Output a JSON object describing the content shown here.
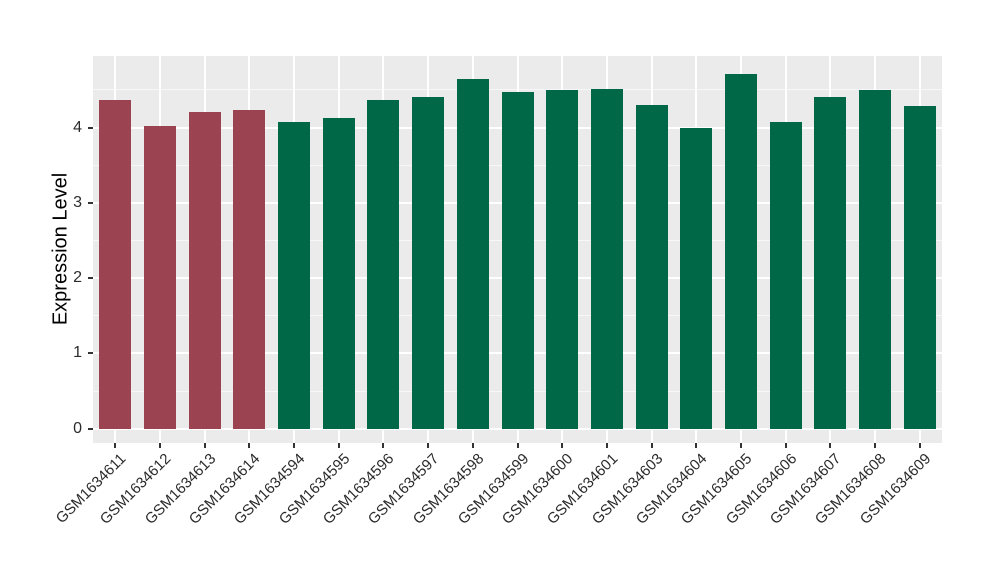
{
  "chart_data": {
    "type": "bar",
    "title": "",
    "xlabel": "",
    "ylabel": "Expression Level",
    "categories": [
      "GSM1634611",
      "GSM1634612",
      "GSM1634613",
      "GSM1634614",
      "GSM1634594",
      "GSM1634595",
      "GSM1634596",
      "GSM1634597",
      "GSM1634598",
      "GSM1634599",
      "GSM1634600",
      "GSM1634601",
      "GSM1634603",
      "GSM1634604",
      "GSM1634605",
      "GSM1634606",
      "GSM1634607",
      "GSM1634608",
      "GSM1634609"
    ],
    "values": [
      4.36,
      4.02,
      4.21,
      4.23,
      4.07,
      4.13,
      4.36,
      4.41,
      4.65,
      4.47,
      4.5,
      4.51,
      4.3,
      4.0,
      4.71,
      4.07,
      4.41,
      4.5,
      4.29
    ],
    "colors": [
      "#9B4351",
      "#9B4351",
      "#9B4351",
      "#9B4351",
      "#006747",
      "#006747",
      "#006747",
      "#006747",
      "#006747",
      "#006747",
      "#006747",
      "#006747",
      "#006747",
      "#006747",
      "#006747",
      "#006747",
      "#006747",
      "#006747",
      "#006747"
    ],
    "group_colors": {
      "highlight_red": "#9B4351",
      "default_green": "#006747"
    },
    "yticks": [
      0,
      1,
      2,
      3,
      4
    ],
    "yticks_minor": [
      0.5,
      1.5,
      2.5,
      3.5,
      4.5
    ],
    "ylim": [
      0,
      4.71
    ],
    "ylim_panel": [
      -0.19,
      4.95
    ],
    "grid": "white major+minor horizontal lines and vertical category lines on gray panel",
    "legend": "none",
    "panel_background": "#EBEBEB",
    "gridline_color": "#FFFFFF",
    "tick_color": "#333333",
    "axis_text_color": "#2B2B2B",
    "axis_title_color": "#000000"
  }
}
